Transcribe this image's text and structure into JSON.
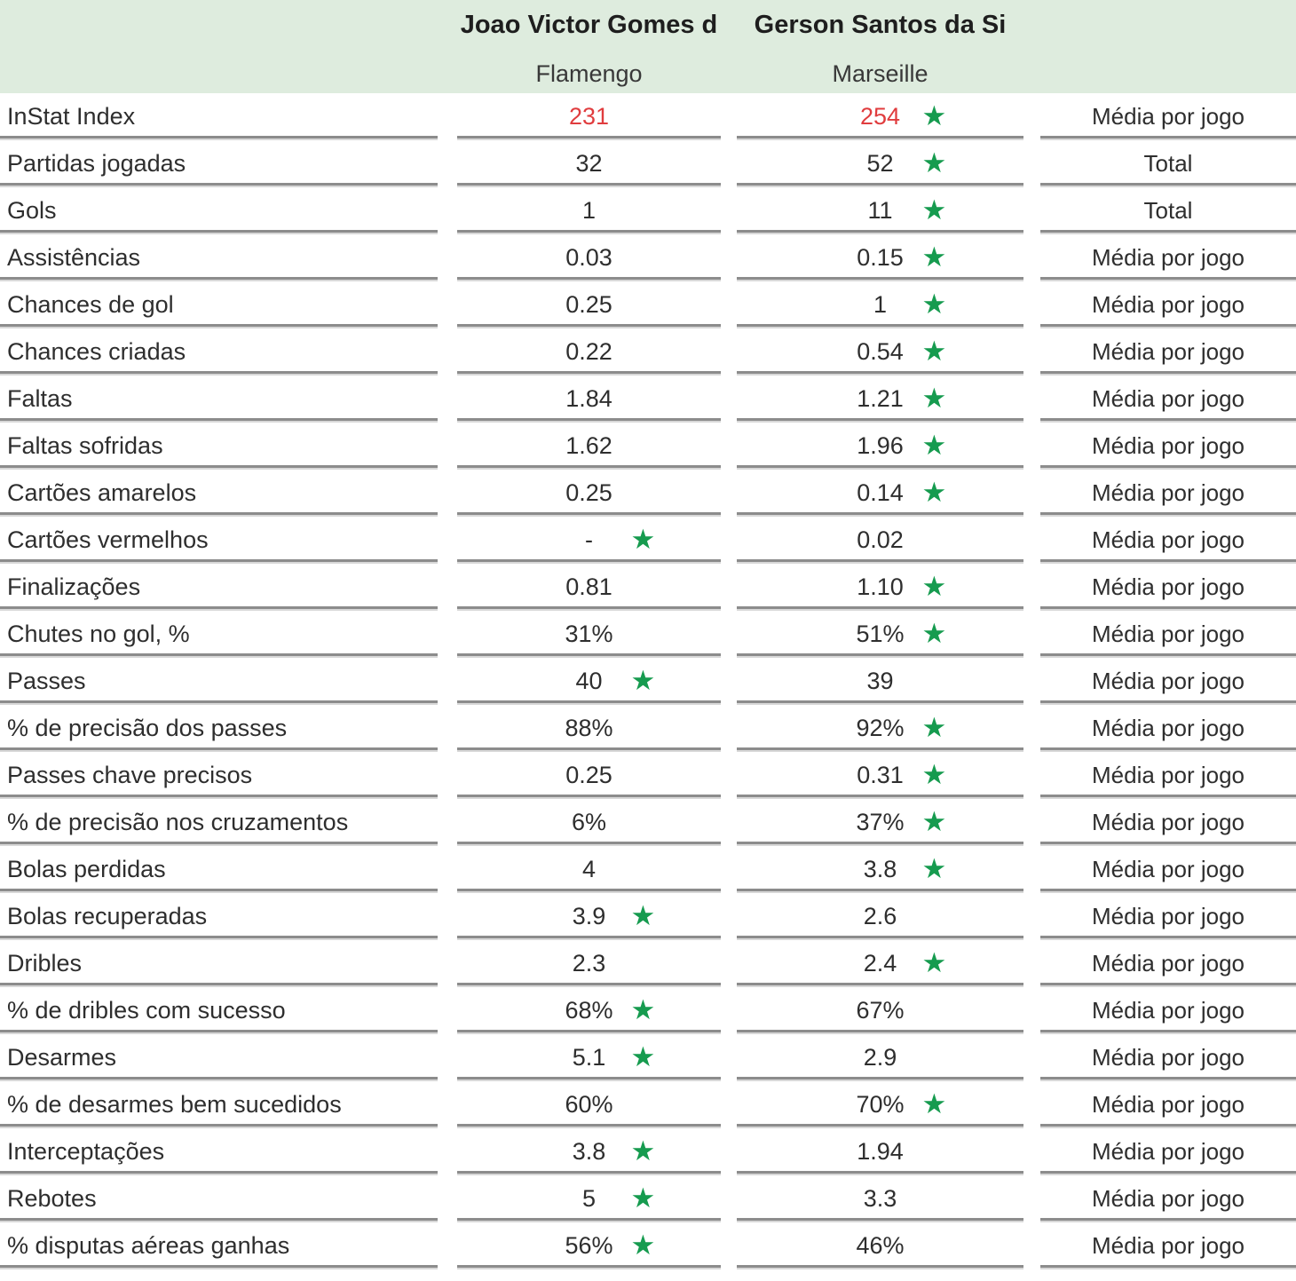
{
  "header": {
    "players": [
      {
        "name": "Joao Victor Gomes d",
        "team": "Flamengo"
      },
      {
        "name": "Gerson Santos da Si",
        "team": "Marseille"
      }
    ]
  },
  "icons": {
    "best_star": "★"
  },
  "colors": {
    "header_bg": "#deecde",
    "star_green": "#169b4f",
    "highlight_red": "#e03c3e",
    "text": "#2e2e2e",
    "line_dark": "#8c8c8c",
    "line_light": "#d8d8d8"
  },
  "rows": [
    {
      "label": "InStat Index",
      "p1": "231",
      "p2": "254",
      "unit": "Média por jogo",
      "p1_star": false,
      "p2_star": true,
      "red": true
    },
    {
      "label": "Partidas jogadas",
      "p1": "32",
      "p2": "52",
      "unit": "Total",
      "p1_star": false,
      "p2_star": true,
      "red": false
    },
    {
      "label": "Gols",
      "p1": "1",
      "p2": "11",
      "unit": "Total",
      "p1_star": false,
      "p2_star": true,
      "red": false
    },
    {
      "label": "Assistências",
      "p1": "0.03",
      "p2": "0.15",
      "unit": "Média por jogo",
      "p1_star": false,
      "p2_star": true,
      "red": false
    },
    {
      "label": "Chances de gol",
      "p1": "0.25",
      "p2": "1",
      "unit": "Média por jogo",
      "p1_star": false,
      "p2_star": true,
      "red": false
    },
    {
      "label": "Chances criadas",
      "p1": "0.22",
      "p2": "0.54",
      "unit": "Média por jogo",
      "p1_star": false,
      "p2_star": true,
      "red": false
    },
    {
      "label": "Faltas",
      "p1": "1.84",
      "p2": "1.21",
      "unit": "Média por jogo",
      "p1_star": false,
      "p2_star": true,
      "red": false
    },
    {
      "label": "Faltas sofridas",
      "p1": "1.62",
      "p2": "1.96",
      "unit": "Média por jogo",
      "p1_star": false,
      "p2_star": true,
      "red": false
    },
    {
      "label": "Cartões amarelos",
      "p1": "0.25",
      "p2": "0.14",
      "unit": "Média por jogo",
      "p1_star": false,
      "p2_star": true,
      "red": false
    },
    {
      "label": "Cartões vermelhos",
      "p1": "-",
      "p2": "0.02",
      "unit": "Média por jogo",
      "p1_star": true,
      "p2_star": false,
      "red": false
    },
    {
      "label": "Finalizações",
      "p1": "0.81",
      "p2": "1.10",
      "unit": "Média por jogo",
      "p1_star": false,
      "p2_star": true,
      "red": false
    },
    {
      "label": "Chutes no gol, %",
      "p1": "31%",
      "p2": "51%",
      "unit": "Média por jogo",
      "p1_star": false,
      "p2_star": true,
      "red": false
    },
    {
      "label": "Passes",
      "p1": "40",
      "p2": "39",
      "unit": "Média por jogo",
      "p1_star": true,
      "p2_star": false,
      "red": false
    },
    {
      "label": "% de precisão dos passes",
      "p1": "88%",
      "p2": "92%",
      "unit": "Média por jogo",
      "p1_star": false,
      "p2_star": true,
      "red": false
    },
    {
      "label": "Passes chave precisos",
      "p1": "0.25",
      "p2": "0.31",
      "unit": "Média por jogo",
      "p1_star": false,
      "p2_star": true,
      "red": false
    },
    {
      "label": "% de precisão nos cruzamentos",
      "p1": "6%",
      "p2": "37%",
      "unit": "Média por jogo",
      "p1_star": false,
      "p2_star": true,
      "red": false
    },
    {
      "label": "Bolas perdidas",
      "p1": "4",
      "p2": "3.8",
      "unit": "Média por jogo",
      "p1_star": false,
      "p2_star": true,
      "red": false
    },
    {
      "label": "Bolas recuperadas",
      "p1": "3.9",
      "p2": "2.6",
      "unit": "Média por jogo",
      "p1_star": true,
      "p2_star": false,
      "red": false
    },
    {
      "label": "Dribles",
      "p1": "2.3",
      "p2": "2.4",
      "unit": "Média por jogo",
      "p1_star": false,
      "p2_star": true,
      "red": false
    },
    {
      "label": "% de dribles com sucesso",
      "p1": "68%",
      "p2": "67%",
      "unit": "Média por jogo",
      "p1_star": true,
      "p2_star": false,
      "red": false
    },
    {
      "label": "Desarmes",
      "p1": "5.1",
      "p2": "2.9",
      "unit": "Média por jogo",
      "p1_star": true,
      "p2_star": false,
      "red": false
    },
    {
      "label": "% de desarmes bem sucedidos",
      "p1": "60%",
      "p2": "70%",
      "unit": "Média por jogo",
      "p1_star": false,
      "p2_star": true,
      "red": false
    },
    {
      "label": "Interceptações",
      "p1": "3.8",
      "p2": "1.94",
      "unit": "Média por jogo",
      "p1_star": true,
      "p2_star": false,
      "red": false
    },
    {
      "label": "Rebotes",
      "p1": "5",
      "p2": "3.3",
      "unit": "Média por jogo",
      "p1_star": true,
      "p2_star": false,
      "red": false
    },
    {
      "label": "% disputas aéreas ganhas",
      "p1": "56%",
      "p2": "46%",
      "unit": "Média por jogo",
      "p1_star": true,
      "p2_star": false,
      "red": false
    }
  ]
}
